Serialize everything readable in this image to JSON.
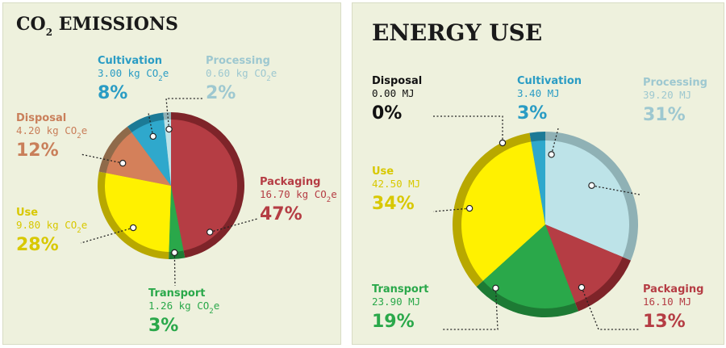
{
  "chart_data": [
    {
      "type": "pie",
      "title": "CO",
      "title_sub": "2",
      "title_rest": " EMISSIONS",
      "unit": "kg CO2e",
      "series": [
        {
          "category": "Packaging",
          "value": 16.7,
          "value_text": "16.70 kg CO",
          "sub": "2",
          "suffix": "e",
          "percent": "47%",
          "color": "#b53d44",
          "dark": "#7e2429"
        },
        {
          "category": "Transport",
          "value": 1.26,
          "value_text": "1.26 kg CO",
          "sub": "2",
          "suffix": "e",
          "percent": "3%",
          "color": "#2aa84a",
          "dark": "#1d7a34"
        },
        {
          "category": "Use",
          "value": 9.8,
          "value_text": "9.80 kg CO",
          "sub": "2",
          "suffix": "e",
          "percent": "28%",
          "color": "#fff100",
          "dark": "#b8a800"
        },
        {
          "category": "Disposal",
          "value": 4.2,
          "value_text": "4.20 kg CO",
          "sub": "2",
          "suffix": "e",
          "percent": "12%",
          "color": "#d4805a",
          "dark": "#8f6a4a"
        },
        {
          "category": "Cultivation",
          "value": 3.0,
          "value_text": "3.00 kg CO",
          "sub": "2",
          "suffix": "e",
          "percent": "8%",
          "color": "#2fa8cc",
          "dark": "#1c7a96"
        },
        {
          "category": "Processing",
          "value": 0.6,
          "value_text": "0.60 kg CO",
          "sub": "2",
          "suffix": "e",
          "percent": "2%",
          "color": "#bde3e8",
          "dark": "#8fb1b5"
        }
      ],
      "label_colors": {
        "Packaging": "#b53d44",
        "Transport": "#2aa84a",
        "Use": "#d8c800",
        "Disposal": "#c97f5a",
        "Cultivation": "#2a9cc4",
        "Processing": "#9ec8d0"
      }
    },
    {
      "type": "pie",
      "title": "ENERGY USE",
      "unit": "MJ",
      "series": [
        {
          "category": "Processing",
          "value": 39.2,
          "value_text": "39.20 MJ",
          "percent": "31%",
          "color": "#bde3e8",
          "dark": "#8fb1b5"
        },
        {
          "category": "Packaging",
          "value": 16.1,
          "value_text": "16.10 MJ",
          "percent": "13%",
          "color": "#b53d44",
          "dark": "#7e2429"
        },
        {
          "category": "Transport",
          "value": 23.9,
          "value_text": "23.90 MJ",
          "percent": "19%",
          "color": "#2aa84a",
          "dark": "#1d7a34"
        },
        {
          "category": "Use",
          "value": 42.5,
          "value_text": "42.50 MJ",
          "percent": "34%",
          "color": "#fff100",
          "dark": "#b8a800"
        },
        {
          "category": "Cultivation",
          "value": 3.4,
          "value_text": "3.40 MJ",
          "percent": "3%",
          "color": "#2fa8cc",
          "dark": "#1c7a96"
        },
        {
          "category": "Disposal",
          "value": 0.0,
          "value_text": "0.00 MJ",
          "percent": "0%",
          "color": "#111111",
          "dark": "#111111"
        }
      ],
      "label_colors": {
        "Processing": "#9ec8d0",
        "Packaging": "#b53d44",
        "Transport": "#2aa84a",
        "Use": "#d8c800",
        "Cultivation": "#2a9cc4",
        "Disposal": "#111111"
      }
    }
  ]
}
